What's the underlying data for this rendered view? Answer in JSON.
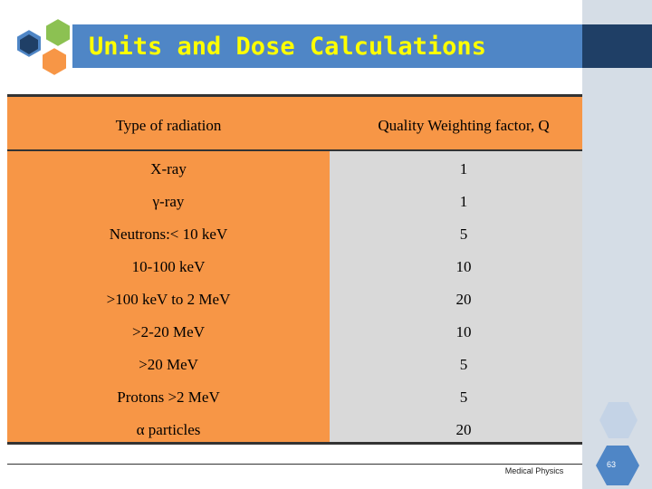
{
  "slide": {
    "title": "Units and Dose Calculations",
    "footer": "Medical Physics",
    "page_number": "63"
  },
  "table": {
    "headers": [
      "Type of radiation",
      "Quality Weighting factor, Q"
    ],
    "rows": [
      {
        "type": "X-ray",
        "q": "1"
      },
      {
        "type": "γ-ray",
        "q": "1"
      },
      {
        "type": "Neutrons:< 10 keV",
        "q": "5"
      },
      {
        "type": "10-100 keV",
        "q": "10"
      },
      {
        "type": ">100 keV to 2 MeV",
        "q": "20"
      },
      {
        "type": ">2-20 MeV",
        "q": "10"
      },
      {
        "type": ">20 MeV",
        "q": "5"
      },
      {
        "type": "Protons >2 MeV",
        "q": "5"
      },
      {
        "type": "α particles",
        "q": "20"
      }
    ]
  },
  "colors": {
    "title_bar": "#4f86c6",
    "title_text": "#ffff00",
    "left_column": "#f79646",
    "right_column": "#d9d9d9",
    "side_panel": "#d5dde6"
  },
  "icons": {
    "logo": "hexagon-cluster-icon",
    "decoration": "hexagon-decoration-icon"
  }
}
